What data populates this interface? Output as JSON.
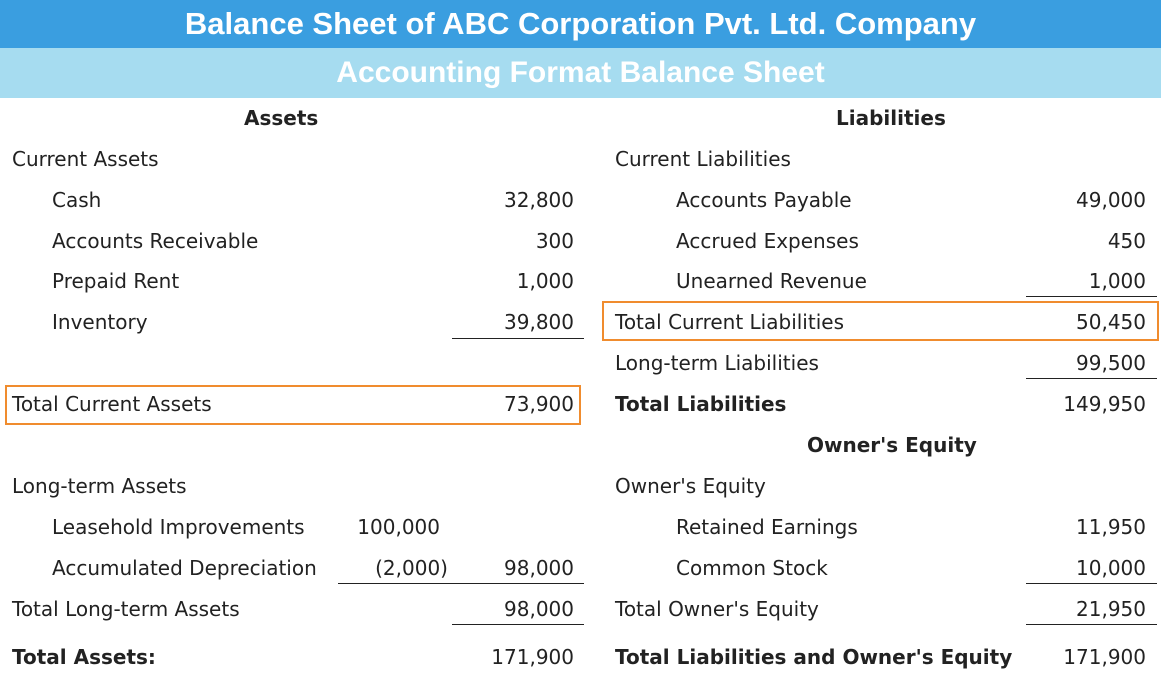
{
  "title": "Balance Sheet of ABC Corporation Pvt. Ltd. Company",
  "subtitle": "Accounting Format Balance Sheet",
  "assets": {
    "heading": "Assets",
    "current_heading": "Current Assets",
    "current_items": [
      {
        "label": "Cash",
        "value": "32,800"
      },
      {
        "label": "Accounts Receivable",
        "value": "300"
      },
      {
        "label": "Prepaid Rent",
        "value": "1,000"
      },
      {
        "label": "Inventory",
        "value": "39,800"
      }
    ],
    "total_current": {
      "label": "Total Current Assets",
      "value": "73,900"
    },
    "longterm_heading": "Long-term Assets",
    "leasehold": {
      "label": "Leasehold Improvements",
      "value": "100,000"
    },
    "depreciation": {
      "label": "Accumulated Depreciation",
      "value": "(2,000)",
      "net": "98,000"
    },
    "total_longterm": {
      "label": "Total Long-term Assets",
      "value": "98,000"
    },
    "total": {
      "label": "Total Assets:",
      "value": "171,900"
    }
  },
  "liabilities": {
    "heading": "Liabilities",
    "current_heading": "Current Liabilities",
    "current_items": [
      {
        "label": "Accounts Payable",
        "value": "49,000"
      },
      {
        "label": "Accrued Expenses",
        "value": "450"
      },
      {
        "label": "Unearned Revenue",
        "value": "1,000"
      }
    ],
    "total_current": {
      "label": "Total Current Liabilities",
      "value": "50,450"
    },
    "longterm": {
      "label": "Long-term Liabilities",
      "value": "99,500"
    },
    "total": {
      "label": "Total Liabilities",
      "value": "149,950"
    }
  },
  "equity": {
    "heading": "Owner's Equity",
    "subheading": "Owner's Equity",
    "items": [
      {
        "label": "Retained Earnings",
        "value": "11,950"
      },
      {
        "label": "Common Stock",
        "value": "10,000"
      }
    ],
    "total": {
      "label": "Total Owner's Equity",
      "value": "21,950"
    },
    "grand_total": {
      "label": "Total Liabilities and Owner's Equity",
      "value": "171,900"
    }
  }
}
